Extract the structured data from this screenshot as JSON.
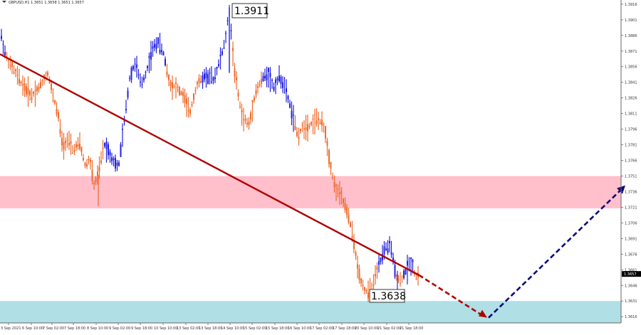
{
  "header": {
    "symbol_line": "GBPUSD,H1  1.3651 1.3658 1.3651 1.3657"
  },
  "chart_data": {
    "type": "line",
    "title": "",
    "xlabel": "",
    "ylabel": "",
    "ylim": [
      1.361,
      1.392
    ],
    "y_ticks": [
      "1.3916",
      "1.3901",
      "1.3886",
      "1.3871",
      "1.3856",
      "1.3841",
      "1.3826",
      "1.3811",
      "1.3796",
      "1.3781",
      "1.3766",
      "1.3751",
      "1.3736",
      "1.3721",
      "1.3706",
      "1.3691",
      "1.3676",
      "1.3661",
      "1.3646",
      "1.3631",
      "1.3616"
    ],
    "x_ticks": [
      "3 Sep 2021",
      "6 Sep 10:00",
      "7 Sep 02:00",
      "7 Sep 18:00",
      "8 Sep 10:00",
      "9 Sep 02:00",
      "9 Sep 18:00",
      "10 Sep 10:00",
      "13 Sep 02:00",
      "13 Sep 18:00",
      "14 Sep 10:00",
      "15 Sep 02:00",
      "15 Sep 18:00",
      "16 Sep 10:00",
      "17 Sep 02:00",
      "17 Sep 18:00",
      "20 Sep 10:00",
      "21 Sep 02:00",
      "21 Sep 18:00"
    ],
    "current_price": "1.3657",
    "annotations": {
      "high_label": "1.3911",
      "low_label": "1.3638"
    },
    "resistance_zone": [
      1.372,
      1.3751
    ],
    "support_zone": [
      1.361,
      1.3631
    ],
    "trend_line": {
      "start": 1.3868,
      "end": 1.3656
    },
    "forecast": {
      "from": 1.3656,
      "down_to": 1.3615,
      "up_to": 1.3742
    },
    "colors": {
      "bull": "#2020e0",
      "bear": "#f06a2a",
      "trend_line": "#b00000",
      "forecast_down": "#b00000",
      "forecast_up": "#0b0b7a",
      "resistance_zone": "#ffbfcb",
      "support_zone": "#b0dfe6"
    }
  }
}
